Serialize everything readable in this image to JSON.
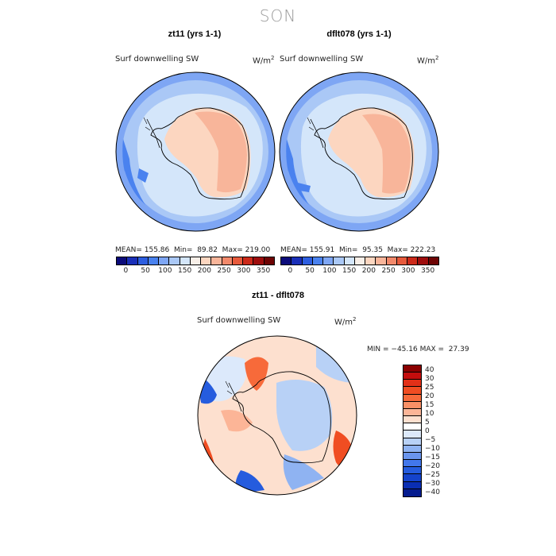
{
  "season_title": "SON",
  "panels": [
    {
      "title": "zt11 (yrs 1-1)",
      "variable": "Surf downwelling SW",
      "units_base": "W/m",
      "units_exp": "2",
      "stats": "MEAN= 155.86  Min=  89.82  Max= 219.00"
    },
    {
      "title": "dflt078 (yrs 1-1)",
      "variable": "Surf downwelling SW",
      "units_base": "W/m",
      "units_exp": "2",
      "stats": "MEAN= 155.91  Min=  95.35  Max= 222.23"
    }
  ],
  "diff_panel": {
    "title": "zt11 - dflt078",
    "variable": "Surf downwelling SW",
    "units_base": "W/m",
    "units_exp": "2",
    "stats": "MIN = −45.16 MAX =  27.39"
  },
  "colorbar_abs": {
    "colors": [
      "#0b0b7a",
      "#1a2fb8",
      "#2d5ee0",
      "#4a82ef",
      "#7ea6f4",
      "#aac8f6",
      "#d4e6fa",
      "#f8efe8",
      "#fcd6c0",
      "#f8b59a",
      "#f2896b",
      "#e75a3c",
      "#cc2a1a",
      "#9e0d0d",
      "#6e0404"
    ],
    "ticks": [
      "0",
      "50",
      "100",
      "150",
      "200",
      "250",
      "300",
      "350"
    ]
  },
  "colorbar_diff": {
    "colors": [
      "#8b0000",
      "#c40d0d",
      "#e23018",
      "#f04d22",
      "#f76a3a",
      "#fa9066",
      "#fcb597",
      "#fde0cf",
      "#ffffff",
      "#dce9fb",
      "#b8d1f6",
      "#8fb3f2",
      "#6a95ee",
      "#4277eb",
      "#255cde",
      "#1443cc",
      "#0a2eb3",
      "#061c8f"
    ],
    "ticks": [
      "40",
      "30",
      "25",
      "20",
      "15",
      "10",
      "5",
      "0",
      "−5",
      "−10",
      "−15",
      "−20",
      "−25",
      "−30",
      "−40"
    ]
  },
  "map_colors": {
    "ocean_outer": "#7ea6f4",
    "ocean_mid": "#aac8f6",
    "ocean_inner": "#d4e6fa",
    "land_low": "#fcd6c0",
    "land_high": "#f8b59a",
    "diff_neg": "#4277eb",
    "diff_pos": "#f04d22",
    "diff_neutral": "#fde0cf"
  }
}
